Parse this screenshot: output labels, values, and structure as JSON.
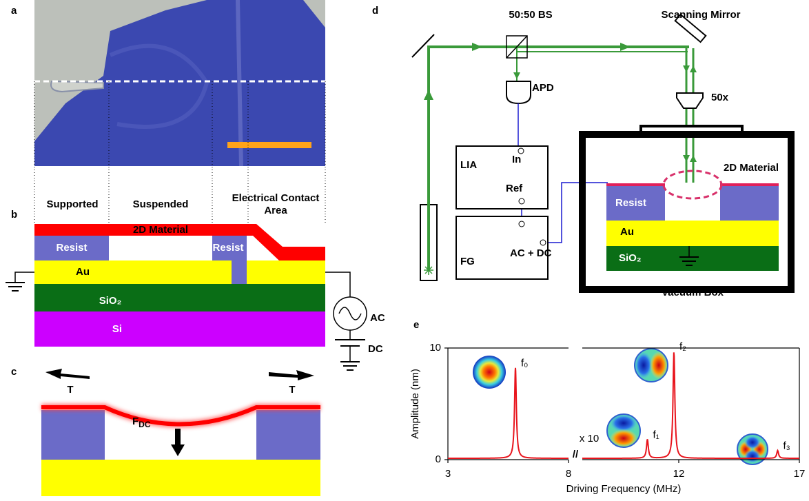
{
  "panel_labels": [
    "a",
    "b",
    "c",
    "d",
    "e"
  ],
  "panel_a": {
    "regions": [
      "Supported",
      "Suspended"
    ],
    "contact_region": [
      "Electrical Contact",
      "Area"
    ]
  },
  "panel_b": {
    "material": "2D Material",
    "resist_left": "Resist",
    "resist_right": "Resist",
    "au": "Au",
    "sio2": "SiO₂",
    "si": "Si",
    "ac": "AC",
    "dc": "DC"
  },
  "panel_c": {
    "tension_left": "T",
    "tension_right": "T",
    "force": {
      "symbol": "F",
      "subscript": "DC"
    }
  },
  "panel_d": {
    "beam_splitter": "50:50 BS",
    "scanning_mirror": "Scanning Mirror",
    "apd": "APD",
    "objective": "50x",
    "lia": "LIA",
    "lia_in": "In",
    "lia_ref": "Ref",
    "fg": "FG",
    "fg_output": "AC + DC",
    "material": "2D Material",
    "resist": "Resist",
    "au": "Au",
    "sio2": "SiO₂",
    "vacuum_box": "Vacuum Box"
  },
  "panel_e": {
    "type": "line",
    "xlabel": "Driving Frequency (MHz)",
    "ylabel": "Amplitude (nm)",
    "ylim": [
      0,
      10
    ],
    "yticks": [
      0,
      10
    ],
    "x_segments": [
      {
        "xlim": [
          3,
          8
        ],
        "xticks": [
          3,
          8
        ]
      },
      {
        "xlim": [
          8,
          17
        ],
        "xticks": [
          12,
          17
        ]
      }
    ],
    "scale_note": "x 10",
    "axis_break": "//",
    "color": "#e8141c",
    "peaks": [
      {
        "label": "f₀",
        "frequency": 5.8,
        "amplitude": 8.1
      },
      {
        "label": "f₁",
        "frequency": 10.7,
        "amplitude": 1.7
      },
      {
        "label": "f₂",
        "frequency": 11.8,
        "amplitude": 9.6
      },
      {
        "label": "f₃",
        "frequency": 16.1,
        "amplitude": 0.7
      }
    ]
  }
}
